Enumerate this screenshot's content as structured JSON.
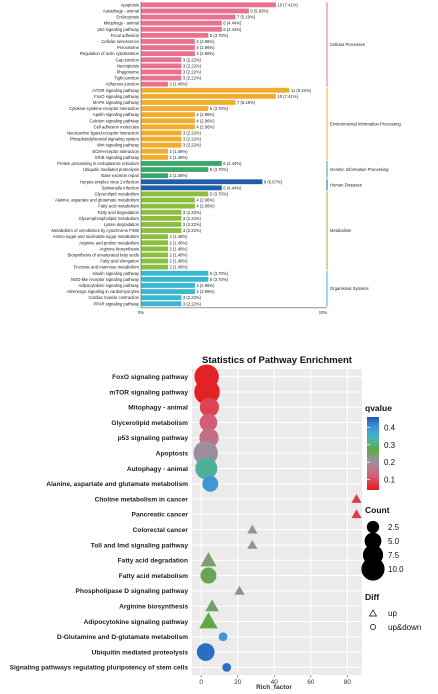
{
  "chart_data": [
    {
      "type": "bar",
      "orientation": "horizontal",
      "xticks": [
        "0%",
        "10%"
      ],
      "xlim": [
        0,
        10
      ],
      "groups": [
        {
          "name": "Cellular Processes",
          "color": "#e8728f",
          "categories": [
            "Apoptosis",
            "Autophagy - animal",
            "Endocytosis",
            "Mitophagy - animal",
            "p53 signaling pathway",
            "Focal adhesion",
            "Cellular senescence",
            "Peroxisome",
            "Regulation of actin cytoskeleton",
            "Gap junction",
            "Necroptosis",
            "Phagosome",
            "Tight junction",
            "Adherens junction"
          ],
          "values": [
            7.41,
            5.93,
            5.19,
            4.44,
            4.44,
            3.7,
            2.96,
            2.96,
            2.96,
            2.22,
            2.22,
            2.22,
            2.22,
            1.48
          ],
          "labels": [
            "10 (7.41%)",
            "8 (5.93%)",
            "7 (5.19%)",
            "6 (4.44%)",
            "6 (4.44%)",
            "5 (3.70%)",
            "4 (2.96%)",
            "4 (2.96%)",
            "4 (2.96%)",
            "3 (2.22%)",
            "3 (2.22%)",
            "3 (2.22%)",
            "3 (2.22%)",
            "2 (1.48%)"
          ]
        },
        {
          "name": "Environmental Information Processing",
          "color": "#f2ac2c",
          "categories": [
            "mTOR signaling pathway",
            "FoxO signaling pathway",
            "MAPK signaling pathway",
            "Cytokine-cytokine receptor interaction",
            "Apelin signaling pathway",
            "Calcium signaling pathway",
            "Cell adhesion molecules",
            "Neuroactive ligand-receptor interaction",
            "Phosphatidylinositol signaling system",
            "Wnt signaling pathway",
            "ECM-receptor interaction",
            "ErbB signaling pathway"
          ],
          "values": [
            8.15,
            7.41,
            5.19,
            3.7,
            2.96,
            2.96,
            2.96,
            2.22,
            2.22,
            2.22,
            1.48,
            1.48
          ],
          "labels": [
            "11 (8.15%)",
            "10 (7.41%)",
            "7 (5.19%)",
            "5 (3.70%)",
            "4 (2.96%)",
            "4 (2.96%)",
            "4 (2.96%)",
            "3 (2.22%)",
            "3 (2.22%)",
            "3 (2.22%)",
            "2 (1.48%)",
            "2 (1.48%)"
          ]
        },
        {
          "name": "Genetic Information Processing",
          "color": "#3aa86a",
          "categories": [
            "Protein processing in endoplasmic reticulum",
            "Ubiquitin mediated proteolysis",
            "Base excision repair"
          ],
          "values": [
            4.44,
            3.7,
            1.48
          ],
          "labels": [
            "6 (4.44%)",
            "5 (3.70%)",
            "2 (1.48%)"
          ]
        },
        {
          "name": "Human Diseases",
          "color": "#1f5fa6",
          "categories": [
            "Herpes simplex virus 1 infection",
            "Salmonella infection"
          ],
          "values": [
            6.67,
            4.44
          ],
          "labels": [
            "9 (6.67%)",
            "6 (4.44%)"
          ]
        },
        {
          "name": "Metabolism",
          "color": "#8cbf3f",
          "categories": [
            "Glycerolipid metabolism",
            "Alanine, aspartate and glutamate metabolism",
            "Fatty acid metabolism",
            "Fatty acid degradation",
            "Glycerophospholipid metabolism",
            "Lysine degradation",
            "Metabolism of xenobiotics by cytochrome P450",
            "Amino sugar and nucleotide sugar metabolism",
            "Arginine and proline metabolism",
            "Arginine biosynthesis",
            "Biosynthesis of unsaturated fatty acids",
            "Fatty acid elongation",
            "Fructose and mannose metabolism"
          ],
          "values": [
            3.7,
            2.96,
            2.96,
            2.22,
            2.22,
            2.22,
            2.22,
            1.48,
            1.48,
            1.48,
            1.48,
            1.48,
            1.48
          ],
          "labels": [
            "5 (3.70%)",
            "4 (2.96%)",
            "4 (2.96%)",
            "3 (2.22%)",
            "3 (2.22%)",
            "3 (2.22%)",
            "3 (2.22%)",
            "2 (1.48%)",
            "2 (1.48%)",
            "2 (1.48%)",
            "2 (1.48%)",
            "2 (1.48%)",
            "2 (1.48%)"
          ]
        },
        {
          "name": "Organismal Systems",
          "color": "#3ab7d3",
          "categories": [
            "Insulin signaling pathway",
            "NOD-like receptor signaling pathway",
            "Adipocytokine signaling pathway",
            "Adrenergic signaling in cardiomyocytes",
            "Cardiac muscle contraction",
            "PPAR signaling pathway"
          ],
          "values": [
            3.7,
            3.7,
            2.96,
            2.96,
            2.22,
            2.22
          ],
          "labels": [
            "5 (3.70%)",
            "5 (3.70%)",
            "4 (2.96%)",
            "4 (2.96%)",
            "3 (2.22%)",
            "3 (2.22%)"
          ]
        }
      ]
    },
    {
      "type": "scatter",
      "title": "Statistics of Pathway Enrichment",
      "xlabel": "Rich_factor",
      "xlim": [
        -5,
        88
      ],
      "xticks": [
        0,
        20,
        40,
        60,
        80
      ],
      "categories": [
        "FoxO signaling pathway",
        "mTOR signaling pathway",
        "Mitophagy - animal",
        "Glycerolipid metabolism",
        "p53 signaling pathway",
        "Apoptosis",
        "Autophagy - animal",
        "Alanine, aspartate and glutamate metabolism",
        "Choline metabolism in cancer",
        "Pancreatic cancer",
        "Colorectal cancer",
        "Toll and Imd signaling pathway",
        "Fatty acid degradation",
        "Fatty acid metabolism",
        "Phospholipase D signaling pathway",
        "Arginine biosynthesis",
        "Adipocytokine signaling pathway",
        "D-Glutamine and D-glutamate metabolism",
        "Ubiquitin mediated proteolysis",
        "Signaling pathways regulating pluripotency of stem cells"
      ],
      "points": [
        {
          "x": 3.0,
          "count": 10,
          "qvalue": 0.05,
          "diff": "up&down"
        },
        {
          "x": 3.2,
          "count": 11,
          "qvalue": 0.05,
          "diff": "up&down"
        },
        {
          "x": 4.5,
          "count": 6,
          "qvalue": 0.09,
          "diff": "up&down"
        },
        {
          "x": 4.0,
          "count": 5,
          "qvalue": 0.12,
          "diff": "up&down"
        },
        {
          "x": 4.3,
          "count": 6,
          "qvalue": 0.15,
          "diff": "up&down"
        },
        {
          "x": 2.5,
          "count": 10,
          "qvalue": 0.2,
          "diff": "up&down"
        },
        {
          "x": 2.8,
          "count": 8,
          "qvalue": 0.32,
          "diff": "up&down"
        },
        {
          "x": 5.0,
          "count": 4,
          "qvalue": 0.4,
          "diff": "up&down"
        },
        {
          "x": 85.0,
          "count": 1,
          "qvalue": 0.08,
          "diff": "up"
        },
        {
          "x": 85.0,
          "count": 1,
          "qvalue": 0.08,
          "diff": "up"
        },
        {
          "x": 28.0,
          "count": 1,
          "qvalue": 0.22,
          "diff": "up"
        },
        {
          "x": 28.0,
          "count": 1,
          "qvalue": 0.22,
          "diff": "up"
        },
        {
          "x": 4.0,
          "count": 3,
          "qvalue": 0.24,
          "diff": "up"
        },
        {
          "x": 4.0,
          "count": 4,
          "qvalue": 0.26,
          "diff": "up&down"
        },
        {
          "x": 21.0,
          "count": 1,
          "qvalue": 0.24,
          "diff": "up"
        },
        {
          "x": 6.0,
          "count": 2,
          "qvalue": 0.25,
          "diff": "up"
        },
        {
          "x": 4.0,
          "count": 4,
          "qvalue": 0.27,
          "diff": "up"
        },
        {
          "x": 12.0,
          "count": 1,
          "qvalue": 0.4,
          "diff": "up&down"
        },
        {
          "x": 2.5,
          "count": 5,
          "qvalue": 0.44,
          "diff": "up&down"
        },
        {
          "x": 14.0,
          "count": 1,
          "qvalue": 0.44,
          "diff": "up&down"
        }
      ],
      "legend": {
        "color_title": "qvalue",
        "color_ticks": [
          "0.4",
          "0.3",
          "0.2",
          "0.1"
        ],
        "color_range": [
          0.04,
          0.46
        ],
        "size_title": "Count",
        "size_ticks": [
          "2.5",
          "5.0",
          "7.5",
          "10.0"
        ],
        "shape_title": "Diff",
        "shape_labels": [
          "up",
          "up&down"
        ]
      }
    }
  ]
}
